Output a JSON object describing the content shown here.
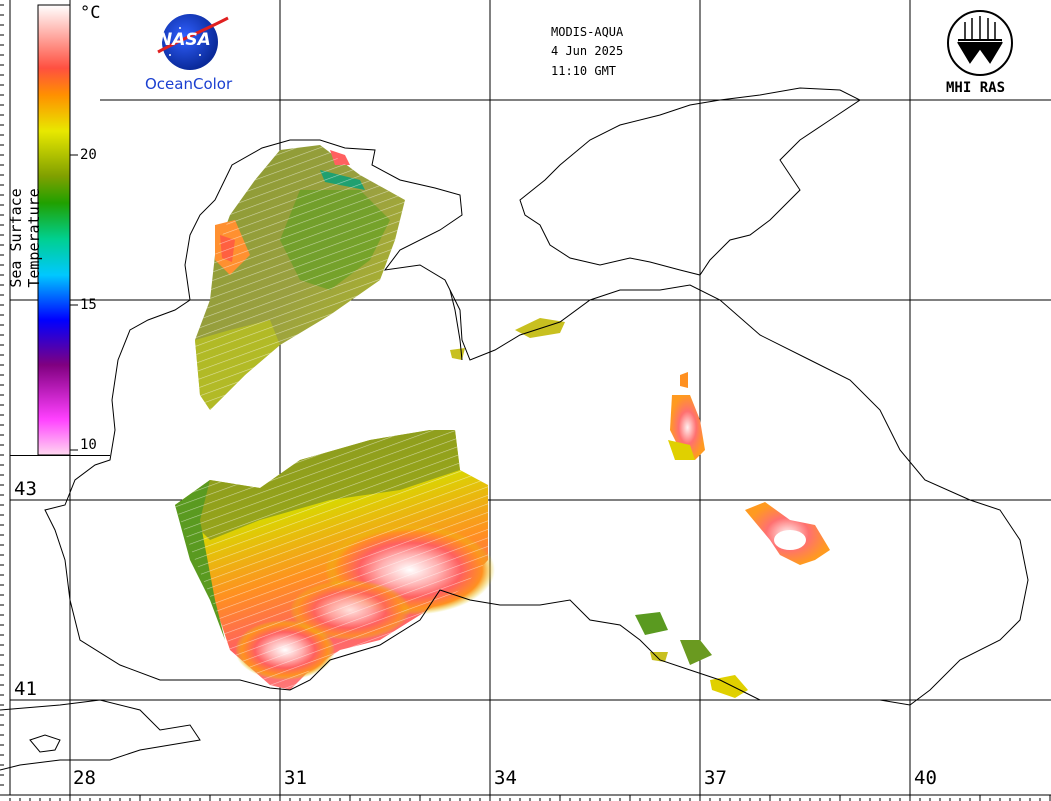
{
  "header": {
    "satellite": "MODIS-AQUA",
    "date": "4 Jun 2025",
    "time": "11:10 GMT"
  },
  "logos": {
    "nasa_text": "NASA",
    "oceancolor": "OceanColor",
    "mhi": "MHI RAS"
  },
  "colorbar": {
    "title": "Sea Surface Temperature",
    "unit": "°C",
    "min": 10,
    "max": 25,
    "ticks": [
      "20",
      "15",
      "10"
    ],
    "colors": [
      "#ffe0f0",
      "#ff40ff",
      "#800080",
      "#0000ff",
      "#00c0ff",
      "#00a000",
      "#e0e000",
      "#ff8000",
      "#ffffff"
    ]
  },
  "axes": {
    "longitude_labels": [
      "28",
      "31",
      "34",
      "37",
      "40"
    ],
    "latitude_labels": [
      "43",
      "41"
    ]
  }
}
